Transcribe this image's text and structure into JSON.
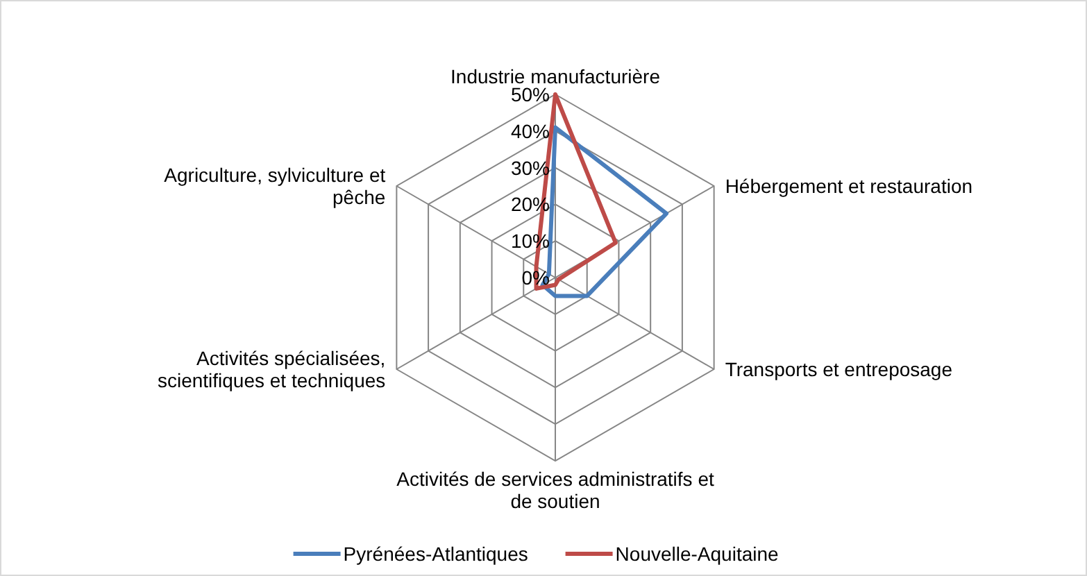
{
  "chart_data": {
    "type": "radar",
    "categories": [
      "Industrie manufacturière",
      "Hébergement et restauration",
      "Transports et entreposage",
      "Activités de services administratifs et de soutien",
      "Activités spécialisées, scientifiques et techniques",
      "Agriculture, sylviculture et pêche"
    ],
    "series": [
      {
        "name": "Pyrénées-Atlantiques",
        "color": "#4a7ebb",
        "values": [
          41,
          35,
          10,
          5,
          4,
          2
        ]
      },
      {
        "name": "Nouvelle-Aquitaine",
        "color": "#be4b48",
        "values": [
          50,
          19,
          1,
          2,
          6,
          6
        ]
      }
    ],
    "ylim": [
      0,
      50
    ],
    "yticks": [
      {
        "value": 0,
        "label": "0%"
      },
      {
        "value": 10,
        "label": "10%"
      },
      {
        "value": 20,
        "label": "20%"
      },
      {
        "value": 30,
        "label": "30%"
      },
      {
        "value": 40,
        "label": "40%"
      },
      {
        "value": 50,
        "label": "50%"
      }
    ],
    "grid": true,
    "legend": "bottom",
    "marker": "none",
    "line_style": "solid"
  }
}
